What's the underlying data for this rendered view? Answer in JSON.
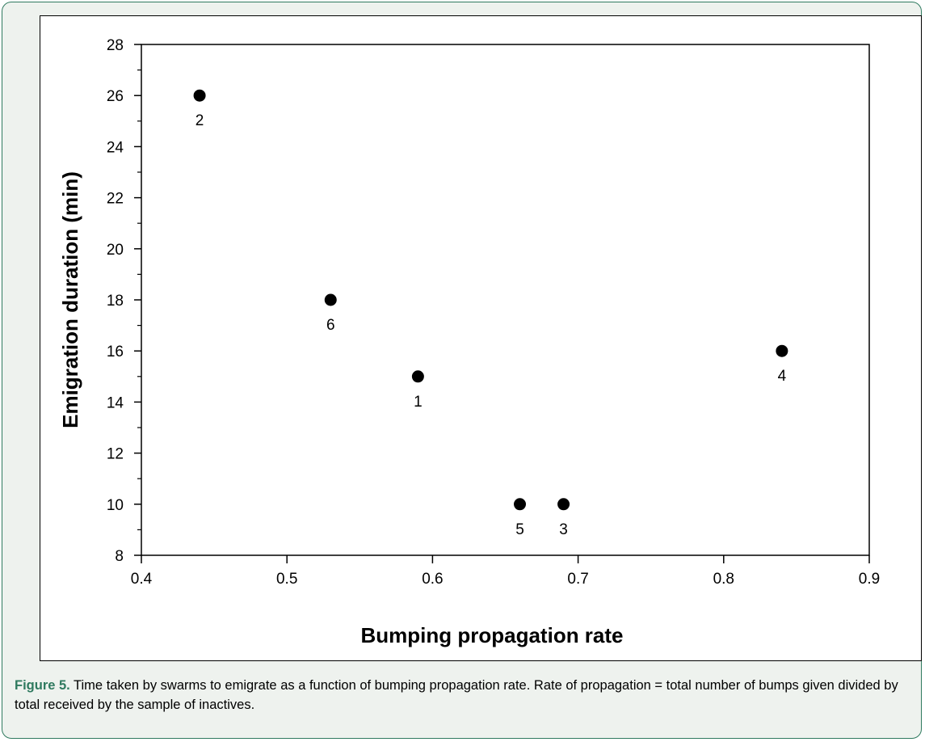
{
  "chart_data": {
    "type": "scatter",
    "title": "",
    "xlabel": "Bumping propagation rate",
    "ylabel": "Emigration duration (min)",
    "xlim": [
      0.4,
      0.9
    ],
    "ylim": [
      8,
      28
    ],
    "xticks": [
      "0.4",
      "0.5",
      "0.6",
      "0.7",
      "0.8",
      "0.9"
    ],
    "yticks": [
      "8",
      "10",
      "12",
      "14",
      "16",
      "18",
      "20",
      "22",
      "24",
      "26",
      "28"
    ],
    "grid": false,
    "legend": "none",
    "marker_color": "#000000",
    "points": [
      {
        "label": "1",
        "x": 0.59,
        "y": 15
      },
      {
        "label": "2",
        "x": 0.44,
        "y": 26
      },
      {
        "label": "3",
        "x": 0.69,
        "y": 10
      },
      {
        "label": "4",
        "x": 0.84,
        "y": 16
      },
      {
        "label": "5",
        "x": 0.66,
        "y": 10
      },
      {
        "label": "6",
        "x": 0.53,
        "y": 18
      }
    ]
  },
  "caption": {
    "label": "Figure 5.",
    "text": " Time taken by swarms to emigrate as a function of bumping propagation rate. Rate of propagation = total number of bumps given divided by total received by the sample of inactives."
  },
  "colors": {
    "accent": "#2f7a5f",
    "panel_background": "#eef2ee"
  }
}
